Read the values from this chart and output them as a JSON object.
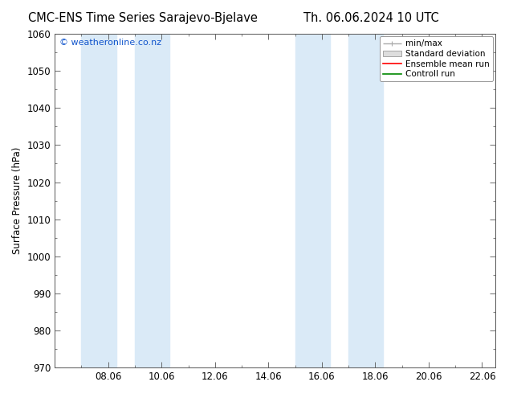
{
  "title_left": "CMC-ENS Time Series Sarajevo-Bjelave",
  "title_right": "Th. 06.06.2024 10 UTC",
  "ylabel": "Surface Pressure (hPa)",
  "ylim": [
    970,
    1060
  ],
  "yticks": [
    970,
    980,
    990,
    1000,
    1010,
    1020,
    1030,
    1040,
    1050,
    1060
  ],
  "xlim_start": 6.0,
  "xlim_end": 22.5,
  "xtick_labels": [
    "08.06",
    "10.06",
    "12.06",
    "14.06",
    "16.06",
    "18.06",
    "20.06",
    "22.06"
  ],
  "xtick_positions": [
    8,
    10,
    12,
    14,
    16,
    18,
    20,
    22
  ],
  "background_color": "#ffffff",
  "plot_bg_color": "#ffffff",
  "blue_shade_bands": [
    {
      "x_start": 7.0,
      "x_end": 8.3
    },
    {
      "x_start": 9.0,
      "x_end": 10.3
    },
    {
      "x_start": 15.0,
      "x_end": 16.3
    },
    {
      "x_start": 17.0,
      "x_end": 18.3
    }
  ],
  "band_color": "#daeaf7",
  "watermark": "© weatheronline.co.nz",
  "watermark_color": "#1155cc",
  "legend_minmax_color": "#aaaaaa",
  "legend_std_facecolor": "#dddddd",
  "legend_std_edgecolor": "#999999",
  "legend_ens_color": "#ff0000",
  "legend_ctrl_color": "#008800",
  "title_fontsize": 10.5,
  "ylabel_fontsize": 8.5,
  "tick_fontsize": 8.5,
  "watermark_fontsize": 8,
  "legend_fontsize": 7.5
}
